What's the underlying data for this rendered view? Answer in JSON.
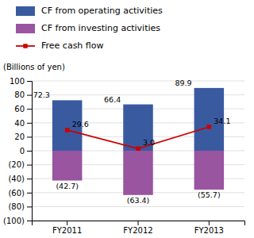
{
  "chart_data": {
    "type": "bar",
    "categories": [
      "FY2011",
      "FY2012",
      "FY2013"
    ],
    "ylabel": "(Billions of yen)",
    "ylim": [
      -100,
      100
    ],
    "yticks": [
      {
        "value": -100,
        "label": "(100)"
      },
      {
        "value": -80,
        "label": "(80)"
      },
      {
        "value": -60,
        "label": "(60)"
      },
      {
        "value": -40,
        "label": "(40)"
      },
      {
        "value": -20,
        "label": "(20)"
      },
      0,
      20,
      40,
      60,
      80,
      100
    ],
    "grid": true,
    "legend": "top",
    "data_labels": true,
    "series": [
      {
        "name": "CF from operating activities",
        "color": "#3a5aa0",
        "values": [
          72.3,
          66.4,
          89.9
        ]
      },
      {
        "name": "CF from investing activities",
        "color": "#9955a0",
        "values": [
          -42.7,
          -63.4,
          -55.7
        ],
        "value_labels": [
          "(42.7)",
          "(63.4)",
          "(55.7)"
        ]
      },
      {
        "name": "Free cash flow",
        "type": "line",
        "marker": "square",
        "color": "#cc0000",
        "values": [
          29.6,
          3.0,
          34.1
        ],
        "value_labels": [
          "29.6",
          "3.0",
          "34.1"
        ]
      }
    ]
  }
}
